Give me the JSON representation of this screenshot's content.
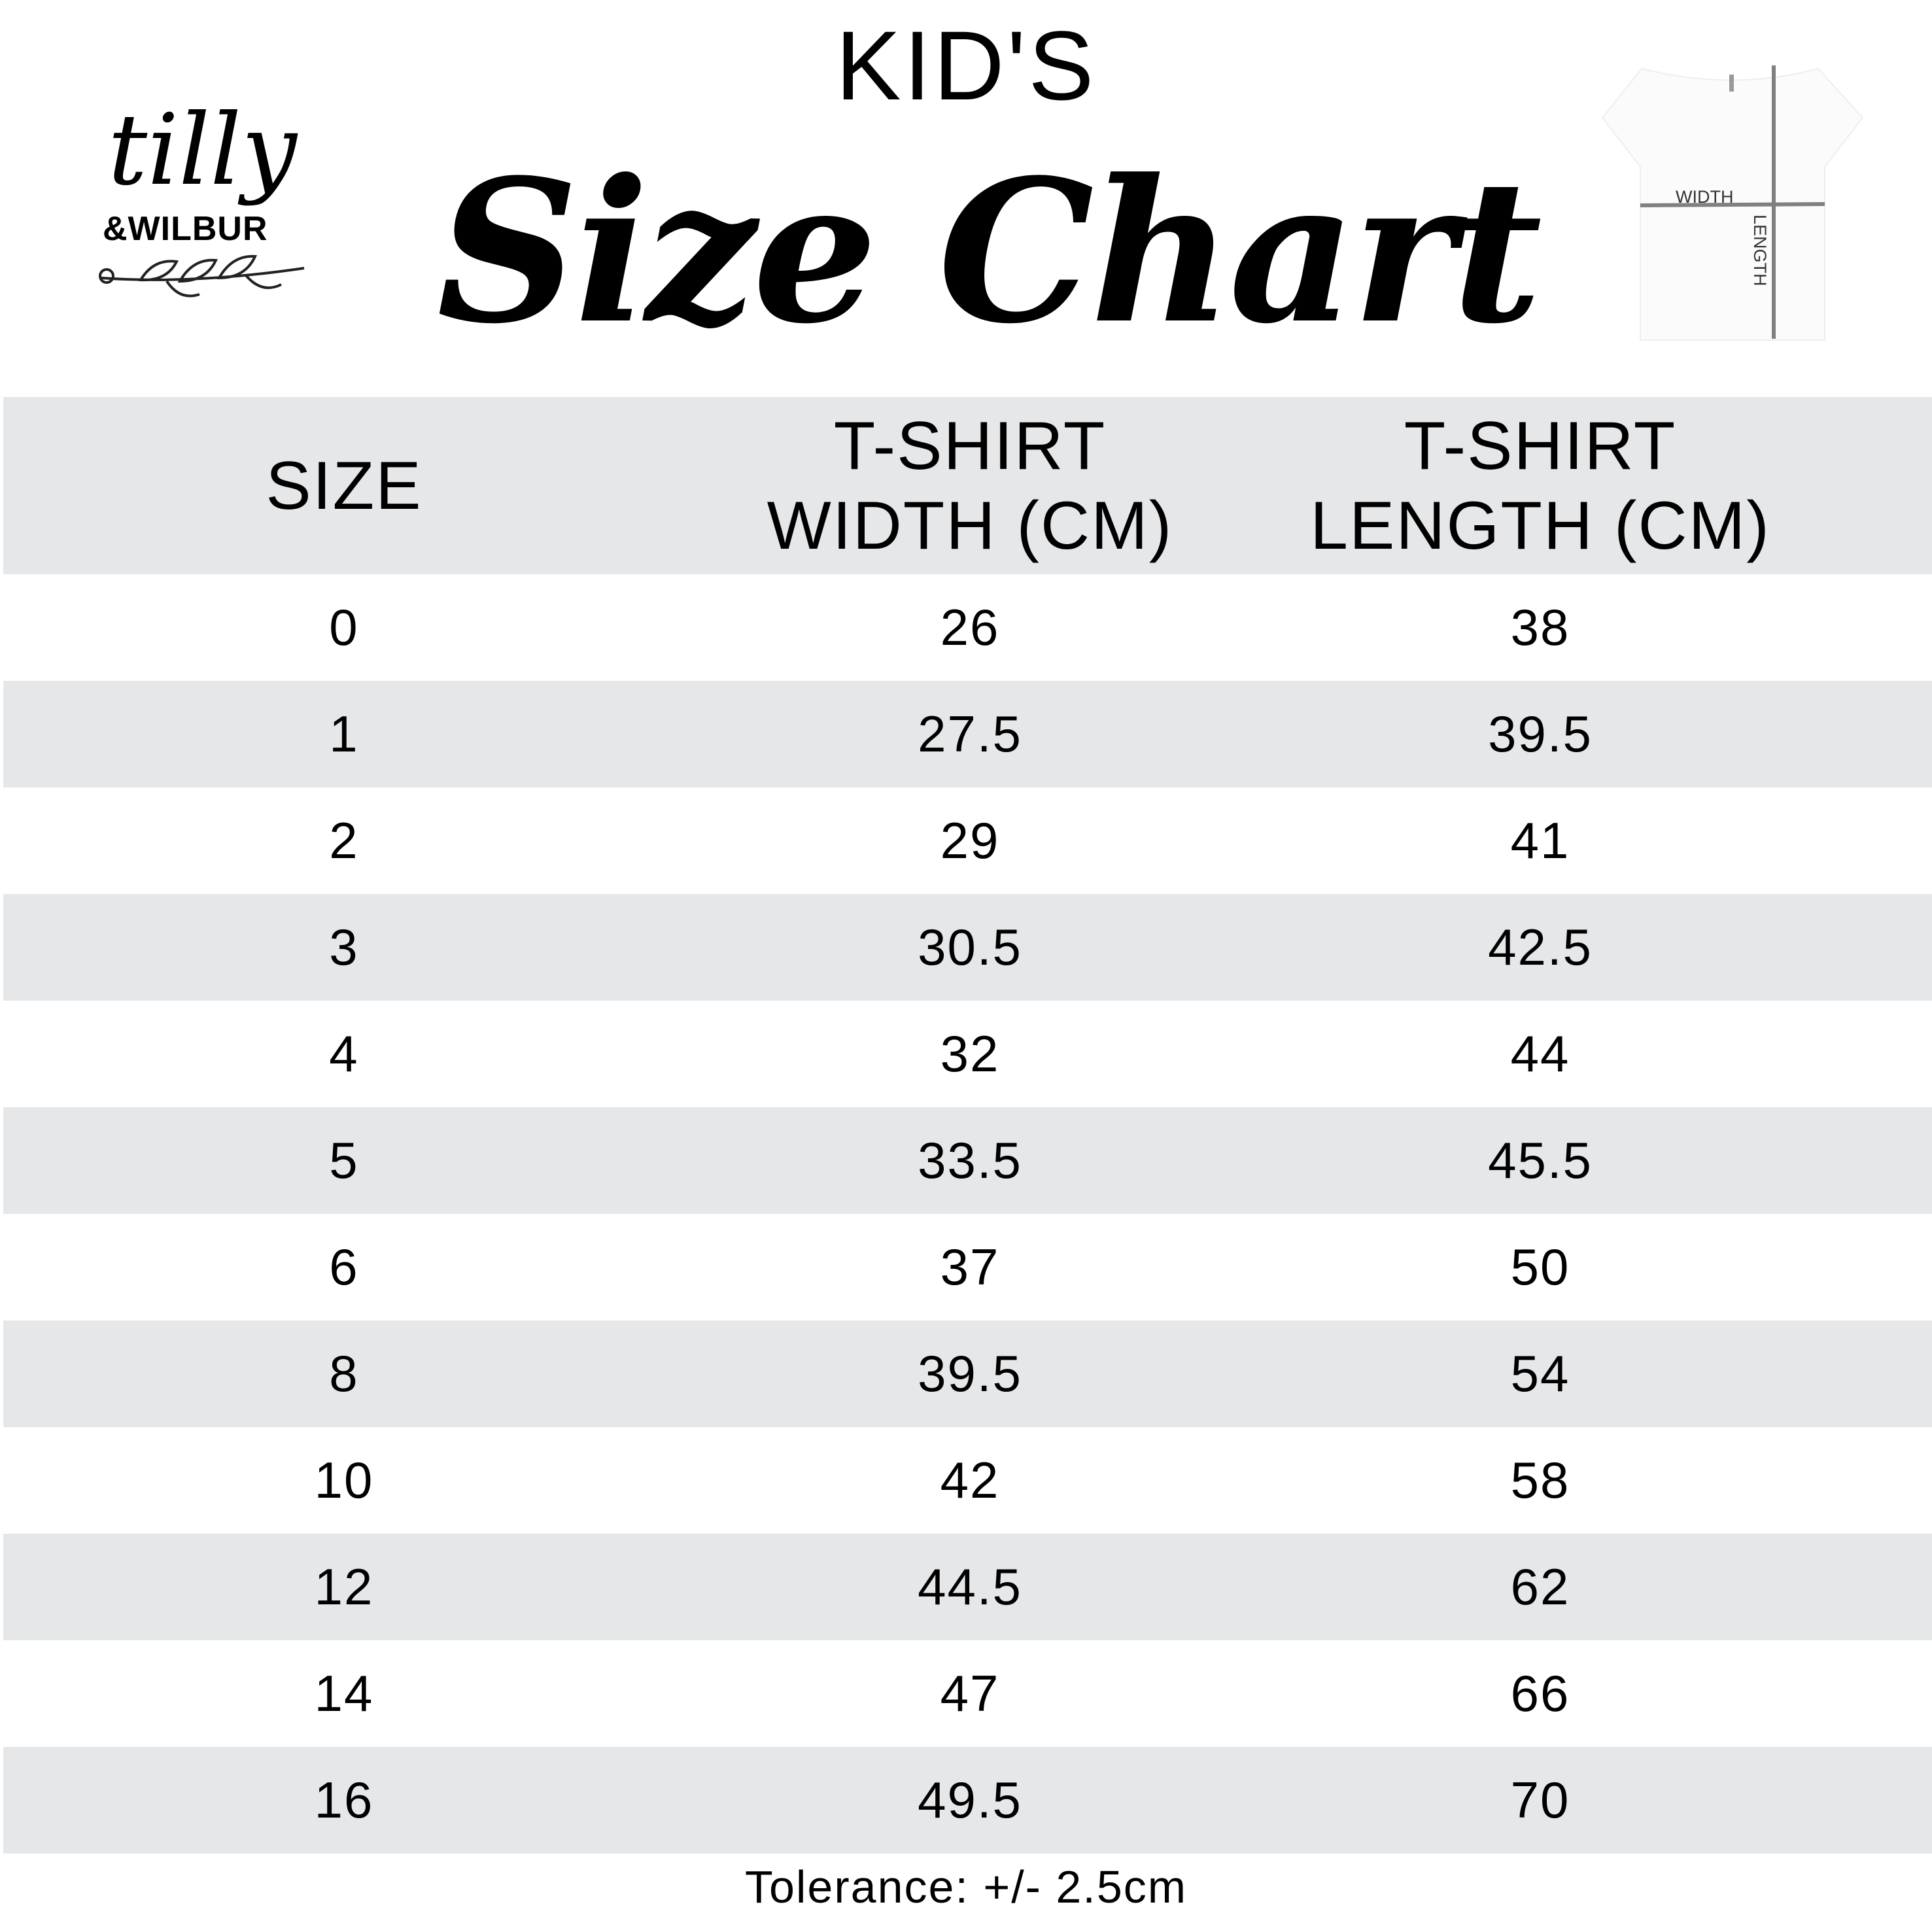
{
  "header": {
    "kicker": "KID'S",
    "title": "Size Chart"
  },
  "logo": {
    "line1": "tilly",
    "line2": "&WILBUR"
  },
  "shirt_diagram": {
    "width_label": "WIDTH",
    "length_label": "LENGTH"
  },
  "table": {
    "columns": [
      "SIZE",
      "T-SHIRT WIDTH (CM)",
      "T-SHIRT LENGTH (CM)"
    ],
    "rows": [
      [
        "0",
        "26",
        "38"
      ],
      [
        "1",
        "27.5",
        "39.5"
      ],
      [
        "2",
        "29",
        "41"
      ],
      [
        "3",
        "30.5",
        "42.5"
      ],
      [
        "4",
        "32",
        "44"
      ],
      [
        "5",
        "33.5",
        "45.5"
      ],
      [
        "6",
        "37",
        "50"
      ],
      [
        "8",
        "39.5",
        "54"
      ],
      [
        "10",
        "42",
        "58"
      ],
      [
        "12",
        "44.5",
        "62"
      ],
      [
        "14",
        "47",
        "66"
      ],
      [
        "16",
        "49.5",
        "70"
      ]
    ]
  },
  "footer": {
    "tolerance": "Tolerance: +/- 2.5cm"
  },
  "colors": {
    "row_stripe": "#e6e7e9",
    "text": "#000000",
    "measure_line": "#808080"
  }
}
